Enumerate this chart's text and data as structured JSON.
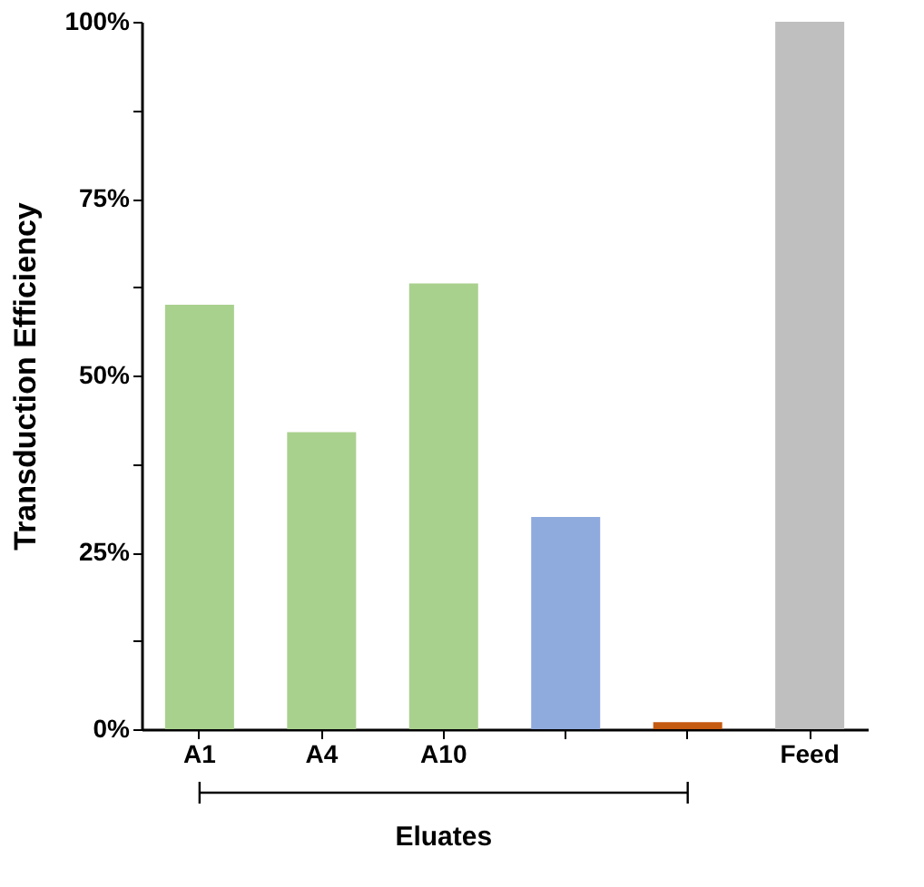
{
  "chart_data": {
    "type": "bar",
    "ylabel": "Transduction Efficiency",
    "categories": [
      "A1",
      "A4",
      "A10",
      null,
      null,
      "Feed"
    ],
    "values": [
      60,
      42,
      63,
      30,
      1,
      100
    ],
    "colors": [
      "#a9d18e",
      "#a9d18e",
      "#a9d18e",
      "#8faadc",
      "#c55a11",
      "#bfbfbf"
    ],
    "ylim": [
      0,
      100
    ],
    "yticks": [
      {
        "value": 0,
        "label": "0%"
      },
      {
        "value": 12.5,
        "label": null
      },
      {
        "value": 25,
        "label": "25%"
      },
      {
        "value": 37.5,
        "label": null
      },
      {
        "value": 50,
        "label": "50%"
      },
      {
        "value": 62.5,
        "label": null
      },
      {
        "value": 75,
        "label": "75%"
      },
      {
        "value": 87.5,
        "label": null
      },
      {
        "value": 100,
        "label": "100%"
      }
    ],
    "annotations": [
      "Eluates"
    ],
    "grid": false
  }
}
